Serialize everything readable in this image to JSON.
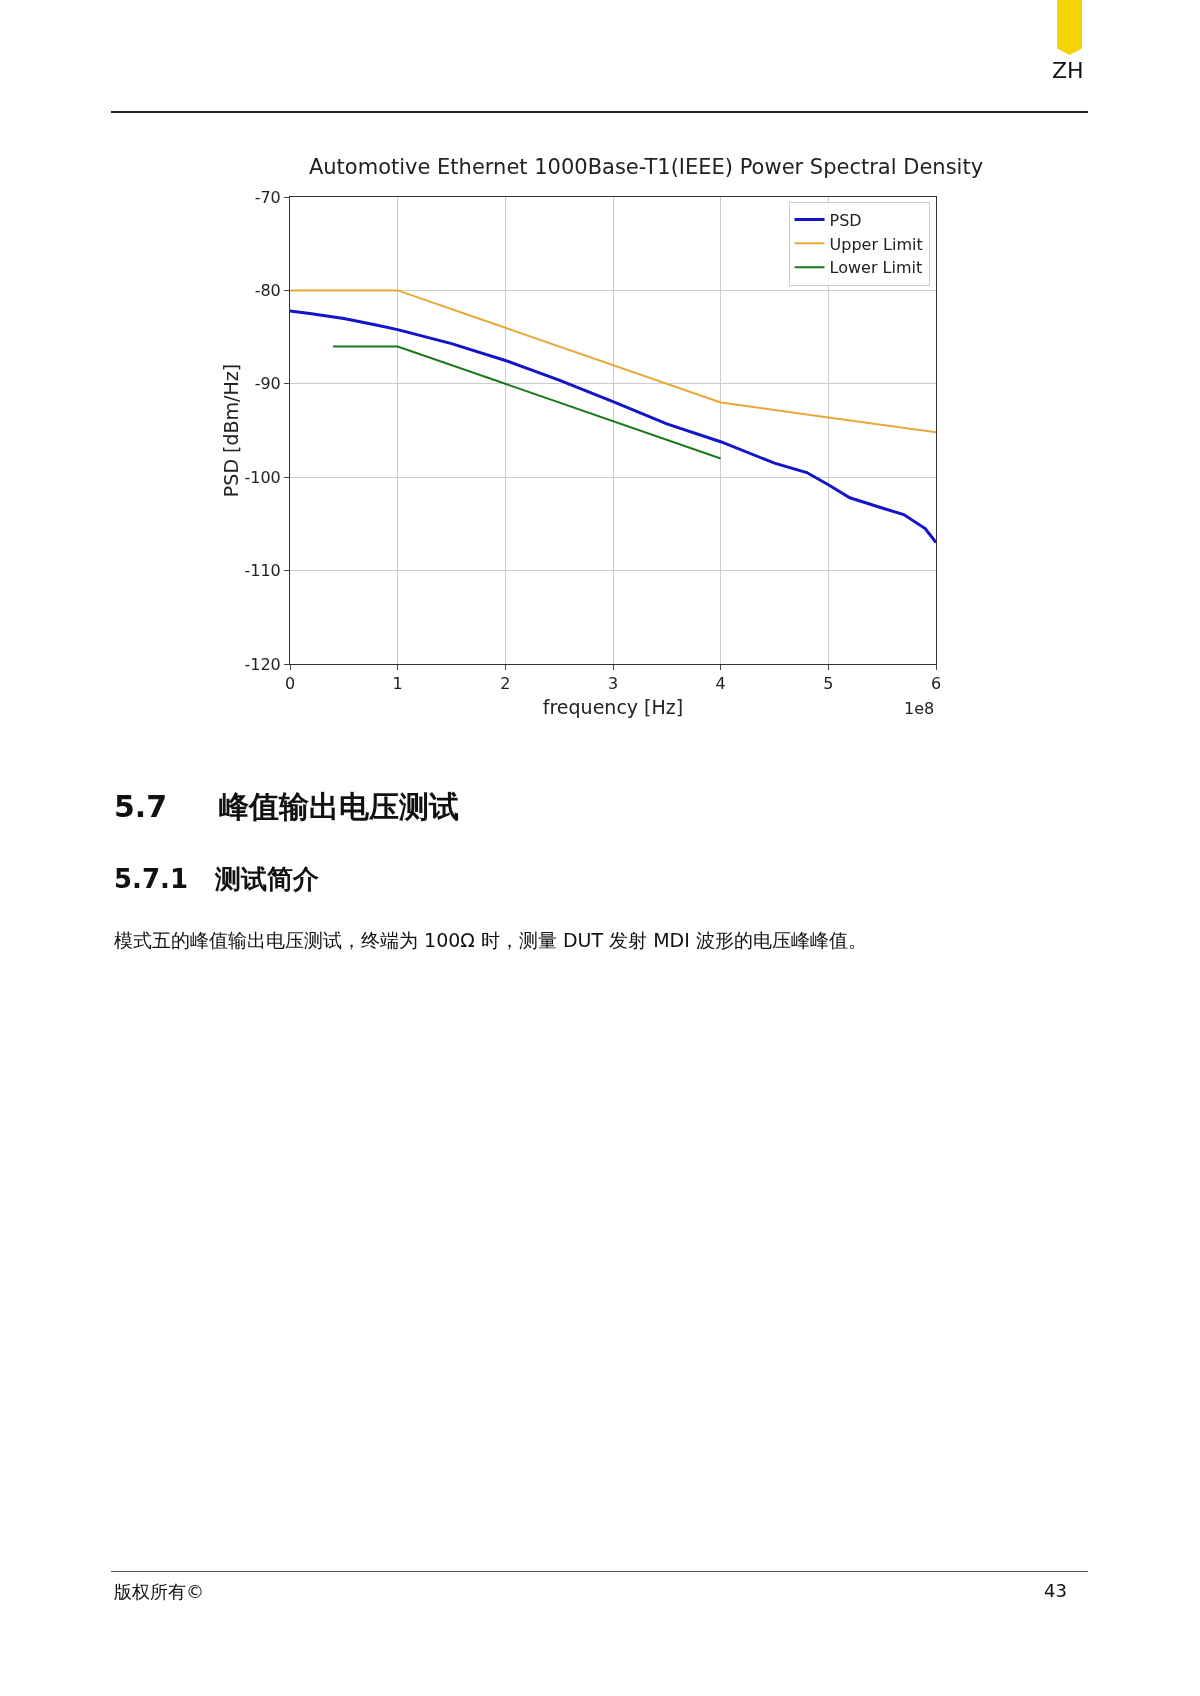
{
  "chart_data": {
    "type": "line",
    "title": "Automotive Ethernet 1000Base-T1(IEEE) Power Spectral Density",
    "xlabel": "frequency [Hz]",
    "ylabel": "PSD [dBm/Hz]",
    "annotations": [
      "1e8",
      "ZH",
      "5.7     峰值输出电压测试",
      "5.7.1   测试简介",
      "模式五的峰值输出电压测试，终端为 100Ω 时，测量 DUT 发射 MDI 波形的电压峰峰值。",
      "版权所有©",
      "43"
    ],
    "series": [
      {
        "name": "PSD",
        "color": "#1414c8",
        "x": [
          0,
          0.2,
          0.5,
          0.8,
          1,
          1.5,
          2,
          2.5,
          3,
          3.5,
          4,
          4.5,
          4.8,
          5,
          5.2,
          5.5,
          5.7,
          5.9,
          6
        ],
        "values": [
          -82.2,
          -82.5,
          -83,
          -83.7,
          -84.2,
          -85.7,
          -87.5,
          -89.6,
          -91.9,
          -94.3,
          -96.2,
          -98.5,
          -99.5,
          -100.8,
          -102.2,
          -103.3,
          -104,
          -105.5,
          -107
        ]
      },
      {
        "name": "Upper Limit",
        "color": "#e8a838",
        "x": [
          0,
          1,
          4,
          5,
          6
        ],
        "values": [
          -80,
          -80,
          -92,
          -93.6,
          -95.2
        ]
      },
      {
        "name": "Lower Limit",
        "color": "#1a7a1a",
        "x": [
          0.4,
          1,
          2,
          4
        ],
        "values": [
          -86,
          -86,
          -90,
          -98
        ]
      }
    ],
    "xlim": [
      0,
      6
    ],
    "xticks": [
      0,
      1,
      2,
      3,
      4,
      5,
      6
    ],
    "ylim": [
      -120,
      -70
    ],
    "yticks": [
      -120,
      -110,
      -100,
      -90,
      -80,
      -70
    ],
    "grid": true,
    "legend": "top right",
    "line_style": "solid",
    "marker": "none"
  }
}
